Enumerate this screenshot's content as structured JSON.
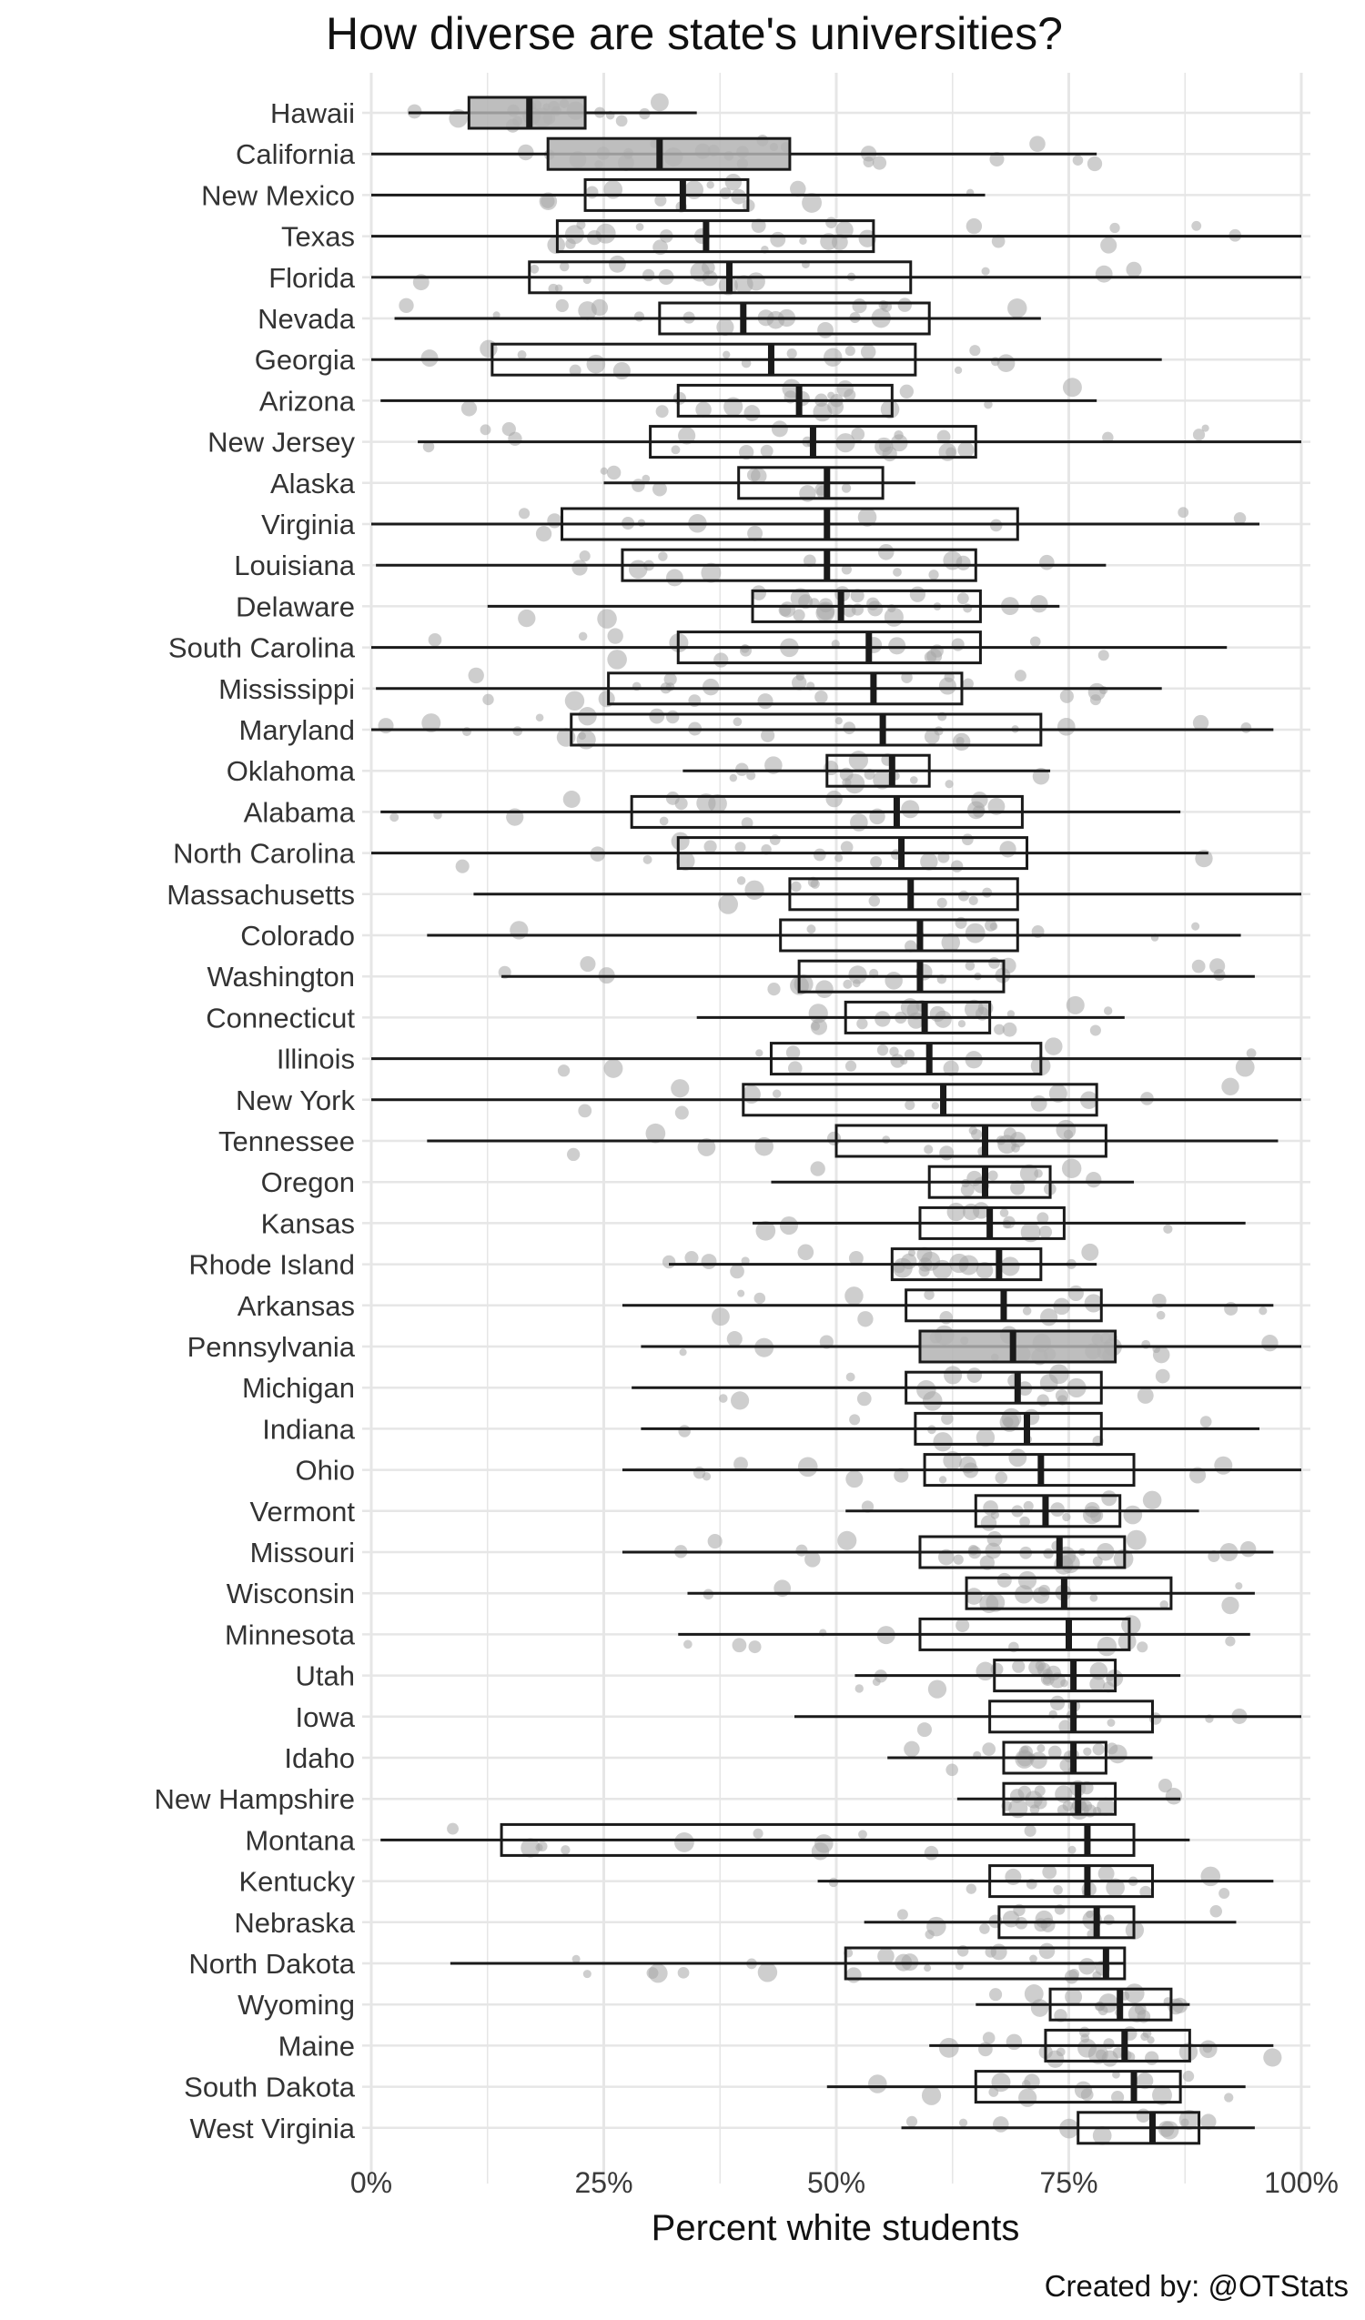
{
  "chart_data": {
    "type": "boxplot",
    "title": "How diverse are state's universities?",
    "xlabel": "Percent white students",
    "ylabel": "",
    "xlim": [
      0,
      100
    ],
    "x_ticks": [
      0,
      25,
      50,
      75,
      100
    ],
    "x_tick_labels": [
      "0%",
      "25%",
      "50%",
      "75%",
      "100%"
    ],
    "grid": true,
    "caption": "Created by: @OTStats",
    "colors": {
      "box": "#1a1a1a",
      "point": "#a6a6a6",
      "grid": "#e6e6e6",
      "filled_box": "#b3b3b3"
    },
    "states": [
      {
        "name": "Hawaii",
        "min": 4,
        "q1": 10.5,
        "median": 17,
        "q3": 23,
        "max": 35,
        "fill": true
      },
      {
        "name": "California",
        "min": 0,
        "q1": 19,
        "median": 31,
        "q3": 45,
        "max": 78,
        "fill": true
      },
      {
        "name": "New Mexico",
        "min": 0,
        "q1": 23,
        "median": 33.5,
        "q3": 40.5,
        "max": 66,
        "fill": false
      },
      {
        "name": "Texas",
        "min": 0,
        "q1": 20,
        "median": 36,
        "q3": 54,
        "max": 100,
        "fill": false
      },
      {
        "name": "Florida",
        "min": 0,
        "q1": 17,
        "median": 38.5,
        "q3": 58,
        "max": 100,
        "fill": false
      },
      {
        "name": "Nevada",
        "min": 2.5,
        "q1": 31,
        "median": 40,
        "q3": 60,
        "max": 72,
        "fill": false
      },
      {
        "name": "Georgia",
        "min": 0,
        "q1": 13,
        "median": 43,
        "q3": 58.5,
        "max": 85,
        "fill": false
      },
      {
        "name": "Arizona",
        "min": 1,
        "q1": 33,
        "median": 46,
        "q3": 56,
        "max": 78,
        "fill": false
      },
      {
        "name": "New Jersey",
        "min": 5,
        "q1": 30,
        "median": 47.5,
        "q3": 65,
        "max": 100,
        "fill": false
      },
      {
        "name": "Alaska",
        "min": 25,
        "q1": 39.5,
        "median": 49,
        "q3": 55,
        "max": 58.5,
        "fill": false
      },
      {
        "name": "Virginia",
        "min": 0,
        "q1": 20.5,
        "median": 49,
        "q3": 69.5,
        "max": 95.5,
        "fill": false
      },
      {
        "name": "Louisiana",
        "min": 0.5,
        "q1": 27,
        "median": 49,
        "q3": 65,
        "max": 79,
        "fill": false
      },
      {
        "name": "Delaware",
        "min": 12.5,
        "q1": 41,
        "median": 50.5,
        "q3": 65.5,
        "max": 74,
        "fill": false
      },
      {
        "name": "South Carolina",
        "min": 0,
        "q1": 33,
        "median": 53.5,
        "q3": 65.5,
        "max": 92,
        "fill": false
      },
      {
        "name": "Mississippi",
        "min": 0.5,
        "q1": 25.5,
        "median": 54,
        "q3": 63.5,
        "max": 85,
        "fill": false
      },
      {
        "name": "Maryland",
        "min": 0,
        "q1": 21.5,
        "median": 55,
        "q3": 72,
        "max": 97,
        "fill": false
      },
      {
        "name": "Oklahoma",
        "min": 33.5,
        "q1": 49,
        "median": 56,
        "q3": 60,
        "max": 73,
        "fill": false
      },
      {
        "name": "Alabama",
        "min": 1,
        "q1": 28,
        "median": 56.5,
        "q3": 70,
        "max": 87,
        "fill": false
      },
      {
        "name": "North Carolina",
        "min": 0,
        "q1": 33,
        "median": 57,
        "q3": 70.5,
        "max": 90,
        "fill": false
      },
      {
        "name": "Massachusetts",
        "min": 11,
        "q1": 45,
        "median": 58,
        "q3": 69.5,
        "max": 100,
        "fill": false
      },
      {
        "name": "Colorado",
        "min": 6,
        "q1": 44,
        "median": 59,
        "q3": 69.5,
        "max": 93.5,
        "fill": false
      },
      {
        "name": "Washington",
        "min": 14,
        "q1": 46,
        "median": 59,
        "q3": 68,
        "max": 95,
        "fill": false
      },
      {
        "name": "Connecticut",
        "min": 35,
        "q1": 51,
        "median": 59.5,
        "q3": 66.5,
        "max": 81,
        "fill": false
      },
      {
        "name": "Illinois",
        "min": 0,
        "q1": 43,
        "median": 60,
        "q3": 72,
        "max": 100,
        "fill": false
      },
      {
        "name": "New York",
        "min": 0,
        "q1": 40,
        "median": 61.5,
        "q3": 78,
        "max": 100,
        "fill": false
      },
      {
        "name": "Tennessee",
        "min": 6,
        "q1": 50,
        "median": 66,
        "q3": 79,
        "max": 97.5,
        "fill": false
      },
      {
        "name": "Oregon",
        "min": 43,
        "q1": 60,
        "median": 66,
        "q3": 73,
        "max": 82,
        "fill": false
      },
      {
        "name": "Kansas",
        "min": 41,
        "q1": 59,
        "median": 66.5,
        "q3": 74.5,
        "max": 94,
        "fill": false
      },
      {
        "name": "Rhode Island",
        "min": 32,
        "q1": 56,
        "median": 67.5,
        "q3": 72,
        "max": 78,
        "fill": false
      },
      {
        "name": "Arkansas",
        "min": 27,
        "q1": 57.5,
        "median": 68,
        "q3": 78.5,
        "max": 97,
        "fill": false
      },
      {
        "name": "Pennsylvania",
        "min": 29,
        "q1": 59,
        "median": 69,
        "q3": 80,
        "max": 100,
        "fill": true
      },
      {
        "name": "Michigan",
        "min": 28,
        "q1": 57.5,
        "median": 69.5,
        "q3": 78.5,
        "max": 100,
        "fill": false
      },
      {
        "name": "Indiana",
        "min": 29,
        "q1": 58.5,
        "median": 70.5,
        "q3": 78.5,
        "max": 95.5,
        "fill": false
      },
      {
        "name": "Ohio",
        "min": 27,
        "q1": 59.5,
        "median": 72,
        "q3": 82,
        "max": 100,
        "fill": false
      },
      {
        "name": "Vermont",
        "min": 51,
        "q1": 65,
        "median": 72.5,
        "q3": 80.5,
        "max": 89,
        "fill": false
      },
      {
        "name": "Missouri",
        "min": 27,
        "q1": 59,
        "median": 74,
        "q3": 81,
        "max": 97,
        "fill": false
      },
      {
        "name": "Wisconsin",
        "min": 34,
        "q1": 64,
        "median": 74.5,
        "q3": 86,
        "max": 95,
        "fill": false
      },
      {
        "name": "Minnesota",
        "min": 33,
        "q1": 59,
        "median": 75,
        "q3": 81.5,
        "max": 94.5,
        "fill": false
      },
      {
        "name": "Utah",
        "min": 52,
        "q1": 67,
        "median": 75.5,
        "q3": 80,
        "max": 87,
        "fill": false
      },
      {
        "name": "Iowa",
        "min": 45.5,
        "q1": 66.5,
        "median": 75.5,
        "q3": 84,
        "max": 100,
        "fill": false
      },
      {
        "name": "Idaho",
        "min": 55.5,
        "q1": 68,
        "median": 75.5,
        "q3": 79,
        "max": 84,
        "fill": false
      },
      {
        "name": "New Hampshire",
        "min": 63,
        "q1": 68,
        "median": 76,
        "q3": 80,
        "max": 87,
        "fill": false
      },
      {
        "name": "Montana",
        "min": 1,
        "q1": 14,
        "median": 77,
        "q3": 82,
        "max": 88,
        "fill": false
      },
      {
        "name": "Kentucky",
        "min": 48,
        "q1": 66.5,
        "median": 77,
        "q3": 84,
        "max": 97,
        "fill": false
      },
      {
        "name": "Nebraska",
        "min": 53,
        "q1": 67.5,
        "median": 78,
        "q3": 82,
        "max": 93,
        "fill": false
      },
      {
        "name": "North Dakota",
        "min": 8.5,
        "q1": 51,
        "median": 79,
        "q3": 81,
        "max": 81,
        "fill": false
      },
      {
        "name": "Wyoming",
        "min": 65,
        "q1": 73,
        "median": 80.5,
        "q3": 86,
        "max": 88,
        "fill": false
      },
      {
        "name": "Maine",
        "min": 60,
        "q1": 72.5,
        "median": 81,
        "q3": 88,
        "max": 97,
        "fill": false
      },
      {
        "name": "South Dakota",
        "min": 49,
        "q1": 65,
        "median": 82,
        "q3": 87,
        "max": 94,
        "fill": false
      },
      {
        "name": "West Virginia",
        "min": 57,
        "q1": 76,
        "median": 84,
        "q3": 89,
        "max": 95,
        "fill": false
      }
    ]
  }
}
